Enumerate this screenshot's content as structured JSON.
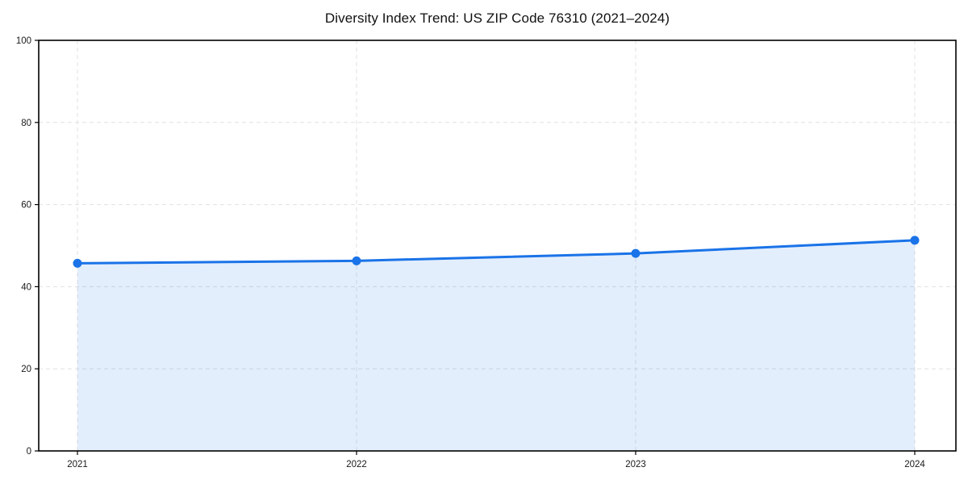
{
  "chart_data": {
    "type": "line",
    "title": "Diversity Index Trend: US ZIP Code 76310 (2021–2024)",
    "x": [
      "2021",
      "2022",
      "2023",
      "2024"
    ],
    "series": [
      {
        "name": "Diversity Index",
        "values": [
          45.7,
          46.3,
          48.1,
          51.3
        ]
      }
    ],
    "xlabel": "",
    "ylabel": "",
    "ylim": [
      0,
      100
    ],
    "yticks": [
      0,
      20,
      40,
      60,
      80,
      100
    ],
    "grid": true,
    "grid_style": "dashed",
    "legend": "none",
    "marker": "circle",
    "area_fill": true
  },
  "colors": {
    "line": "#1a73e8",
    "marker": "#1a73e8",
    "area_fill": "rgba(26,115,232,0.12)",
    "grid": "#e1e1e1",
    "axis": "#000000",
    "tick_text": "#1a1a1a",
    "background": "#ffffff"
  }
}
